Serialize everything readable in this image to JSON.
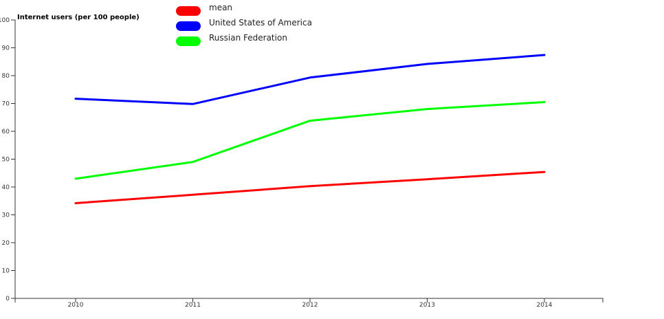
{
  "chart_data": {
    "type": "line",
    "ylabel": "Internet users (per 100 people)",
    "xlabel": "",
    "x": [
      2010,
      2011,
      2012,
      2013,
      2014
    ],
    "ylim": [
      0,
      100
    ],
    "y_ticks": [
      0,
      10,
      20,
      30,
      40,
      50,
      60,
      70,
      80,
      90,
      100
    ],
    "grid": false,
    "legend_position": "top-center",
    "series": [
      {
        "name": "mean",
        "color": "#ff0000",
        "values": [
          34.2,
          37.2,
          40.3,
          42.8,
          45.4
        ]
      },
      {
        "name": "United States of America",
        "color": "#0000ff",
        "values": [
          71.7,
          69.8,
          79.3,
          84.2,
          87.4
        ]
      },
      {
        "name": "Russian Federation",
        "color": "#00ff00",
        "values": [
          43.0,
          49.0,
          63.8,
          68.0,
          70.5
        ]
      }
    ]
  }
}
